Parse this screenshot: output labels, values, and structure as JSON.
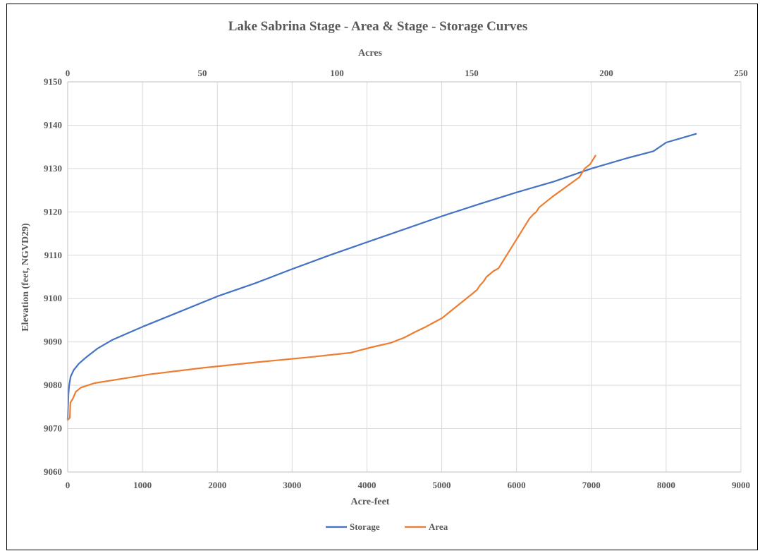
{
  "chart_data": {
    "type": "line",
    "title": "Lake Sabrina Stage - Area & Stage - Storage Curves",
    "xlabel": "Acre-feet",
    "x2label": "Acres",
    "ylabel": "Elevation (feet, NGVD29)",
    "xlim": [
      0,
      9000
    ],
    "x2lim": [
      0,
      250
    ],
    "ylim": [
      9060,
      9150
    ],
    "xticks": [
      "0",
      "1000",
      "2000",
      "3000",
      "4000",
      "5000",
      "6000",
      "7000",
      "8000",
      "9000"
    ],
    "x2ticks": [
      "0",
      "50",
      "100",
      "150",
      "200",
      "250"
    ],
    "yticks": [
      "9060",
      "9070",
      "9080",
      "9090",
      "9100",
      "9110",
      "9120",
      "9130",
      "9140",
      "9150"
    ],
    "grid": true,
    "legend_position": "bottom",
    "series": [
      {
        "name": "Storage",
        "axis": "bottom",
        "color": "#4472C4",
        "points": [
          [
            0,
            9072
          ],
          [
            5,
            9075
          ],
          [
            10,
            9078
          ],
          [
            20,
            9080
          ],
          [
            40,
            9082
          ],
          [
            80,
            9083.5
          ],
          [
            150,
            9085
          ],
          [
            250,
            9086.5
          ],
          [
            400,
            9088.5
          ],
          [
            600,
            9090.5
          ],
          [
            800,
            9092
          ],
          [
            1000,
            9093.5
          ],
          [
            1500,
            9097
          ],
          [
            2000,
            9100.5
          ],
          [
            2500,
            9103.5
          ],
          [
            3000,
            9106.8
          ],
          [
            3500,
            9110
          ],
          [
            4000,
            9113
          ],
          [
            4500,
            9116
          ],
          [
            5000,
            9119
          ],
          [
            5500,
            9121.8
          ],
          [
            6000,
            9124.5
          ],
          [
            6500,
            9127
          ],
          [
            7000,
            9130
          ],
          [
            7500,
            9132.5
          ],
          [
            7830,
            9134
          ],
          [
            8000,
            9136
          ],
          [
            8400,
            9138
          ]
        ]
      },
      {
        "name": "Area",
        "axis": "top",
        "color": "#ED7D31",
        "points": [
          [
            0,
            9072
          ],
          [
            0.8,
            9072.5
          ],
          [
            1,
            9076
          ],
          [
            2,
            9077
          ],
          [
            3,
            9078.5
          ],
          [
            5,
            9079.5
          ],
          [
            10,
            9080.5
          ],
          [
            20,
            9081.5
          ],
          [
            30,
            9082.5
          ],
          [
            50,
            9084
          ],
          [
            70,
            9085.3
          ],
          [
            90,
            9086.5
          ],
          [
            105,
            9087.5
          ],
          [
            113,
            9088.8
          ],
          [
            120,
            9089.8
          ],
          [
            125,
            9091
          ],
          [
            129,
            9092.3
          ],
          [
            133,
            9093.5
          ],
          [
            136,
            9094.5
          ],
          [
            139,
            9095.5
          ],
          [
            144,
            9098
          ],
          [
            150,
            9101
          ],
          [
            152,
            9102
          ],
          [
            153,
            9103
          ],
          [
            154.5,
            9104
          ],
          [
            155.5,
            9105
          ],
          [
            158,
            9106.3
          ],
          [
            160,
            9107
          ],
          [
            162,
            9109
          ],
          [
            168,
            9115
          ],
          [
            171.5,
            9118.5
          ],
          [
            173,
            9119.5
          ],
          [
            174,
            9120
          ],
          [
            175,
            9121
          ],
          [
            180,
            9123.5
          ],
          [
            190,
            9128
          ],
          [
            191,
            9129
          ],
          [
            192,
            9130
          ],
          [
            194,
            9131
          ],
          [
            196,
            9133
          ]
        ]
      }
    ]
  }
}
